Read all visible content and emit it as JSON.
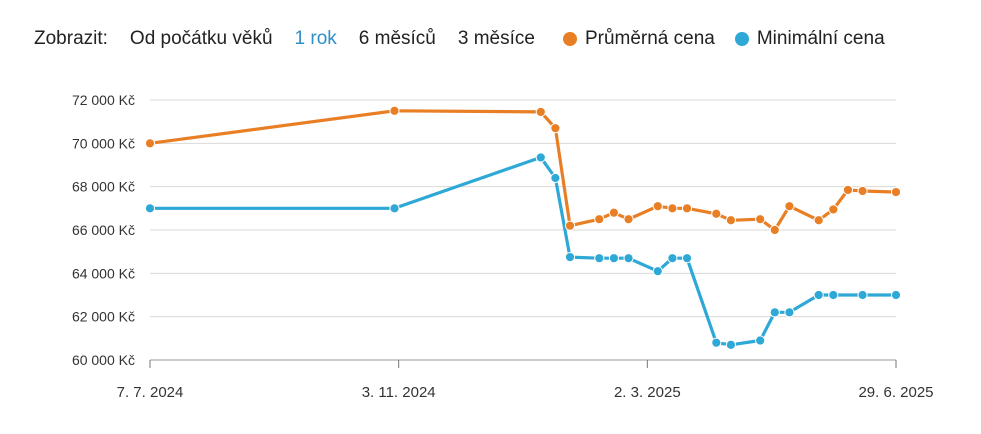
{
  "toolbar": {
    "label": "Zobrazit:",
    "ranges": [
      "Od počátku věků",
      "1 rok",
      "6 měsíců",
      "3 měsíce"
    ],
    "active_range": "1 rok"
  },
  "colors": {
    "avg": "#e97f25",
    "min": "#2ea8d6",
    "active": "#2f8fc7",
    "grid": "#d9d9d9",
    "axis": "#999999"
  },
  "chart_data": {
    "type": "line",
    "title": "",
    "xlabel": "",
    "ylabel": "",
    "ylim": [
      60000,
      72000
    ],
    "xlim": [
      "2024-07-07",
      "2025-06-29"
    ],
    "y_ticks": [
      {
        "value": 60000,
        "label": "60 000 Kč"
      },
      {
        "value": 62000,
        "label": "62 000 Kč"
      },
      {
        "value": 64000,
        "label": "64 000 Kč"
      },
      {
        "value": 66000,
        "label": "66 000 Kč"
      },
      {
        "value": 68000,
        "label": "68 000 Kč"
      },
      {
        "value": 70000,
        "label": "70 000 Kč"
      },
      {
        "value": 72000,
        "label": "72 000 Kč"
      }
    ],
    "x_ticks": [
      {
        "date": "2024-07-07",
        "label": "7. 7. 2024"
      },
      {
        "date": "2024-11-03",
        "label": "3. 11. 2024"
      },
      {
        "date": "2025-03-02",
        "label": "2. 3. 2025"
      },
      {
        "date": "2025-06-29",
        "label": "29. 6. 2025"
      }
    ],
    "grid": true,
    "legend": "top-right",
    "series": [
      {
        "name": "Průměrná cena",
        "color": "#e97f25",
        "points": [
          [
            "2024-07-07",
            70000
          ],
          [
            "2024-11-01",
            71500
          ],
          [
            "2025-01-10",
            71450
          ],
          [
            "2025-01-17",
            70700
          ],
          [
            "2025-01-24",
            66200
          ],
          [
            "2025-02-07",
            66500
          ],
          [
            "2025-02-14",
            66800
          ],
          [
            "2025-02-21",
            66500
          ],
          [
            "2025-03-07",
            67100
          ],
          [
            "2025-03-14",
            67000
          ],
          [
            "2025-03-21",
            67000
          ],
          [
            "2025-04-04",
            66750
          ],
          [
            "2025-04-11",
            66450
          ],
          [
            "2025-04-25",
            66500
          ],
          [
            "2025-05-02",
            66000
          ],
          [
            "2025-05-09",
            67100
          ],
          [
            "2025-05-23",
            66450
          ],
          [
            "2025-05-30",
            66950
          ],
          [
            "2025-06-06",
            67850
          ],
          [
            "2025-06-13",
            67800
          ],
          [
            "2025-06-29",
            67750
          ]
        ]
      },
      {
        "name": "Minimální cena",
        "color": "#2ea8d6",
        "points": [
          [
            "2024-07-07",
            67000
          ],
          [
            "2024-11-01",
            67000
          ],
          [
            "2025-01-10",
            69350
          ],
          [
            "2025-01-17",
            68400
          ],
          [
            "2025-01-24",
            64750
          ],
          [
            "2025-02-07",
            64700
          ],
          [
            "2025-02-14",
            64700
          ],
          [
            "2025-02-21",
            64700
          ],
          [
            "2025-03-07",
            64100
          ],
          [
            "2025-03-14",
            64700
          ],
          [
            "2025-03-21",
            64700
          ],
          [
            "2025-04-04",
            60800
          ],
          [
            "2025-04-11",
            60700
          ],
          [
            "2025-04-25",
            60900
          ],
          [
            "2025-05-02",
            62200
          ],
          [
            "2025-05-09",
            62200
          ],
          [
            "2025-05-23",
            63000
          ],
          [
            "2025-05-30",
            63000
          ],
          [
            "2025-06-13",
            63000
          ],
          [
            "2025-06-29",
            63000
          ]
        ]
      }
    ]
  }
}
